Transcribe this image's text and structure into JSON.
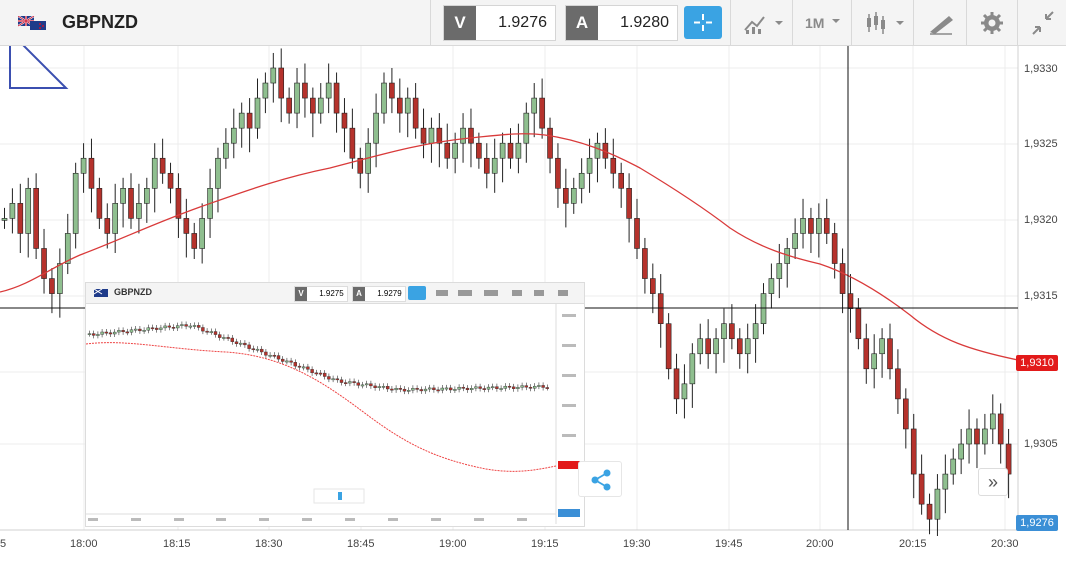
{
  "header": {
    "symbol": "GBPNZD",
    "bid_letter": "V",
    "bid_value": "1.9276",
    "ask_letter": "A",
    "ask_value": "1.9280",
    "timeframe": "1M"
  },
  "axis": {
    "y_labels": [
      "1,9330",
      "1,9325",
      "1,9320",
      "1,9315",
      "1,9305"
    ],
    "x_labels": [
      "5",
      "18:00",
      "18:15",
      "18:30",
      "18:45",
      "19:00",
      "19:15",
      "19:30",
      "19:45",
      "20:00",
      "20:15",
      "20:30"
    ]
  },
  "price_tags": {
    "ma": "1,9310",
    "last": "1,9276"
  },
  "inset": {
    "symbol": "GBPNZD",
    "bid_letter": "V",
    "bid_value": "1.9275",
    "ask_letter": "A",
    "ask_value": "1.9279"
  },
  "buttons": {
    "more": "»"
  },
  "colors": {
    "bull": "#8fbf8f",
    "bear": "#b5322c",
    "ma_line": "#d93a3a",
    "accent": "#3aa3e3",
    "tag_red": "#e21a1a",
    "tag_blue": "#3b8fd6"
  }
}
